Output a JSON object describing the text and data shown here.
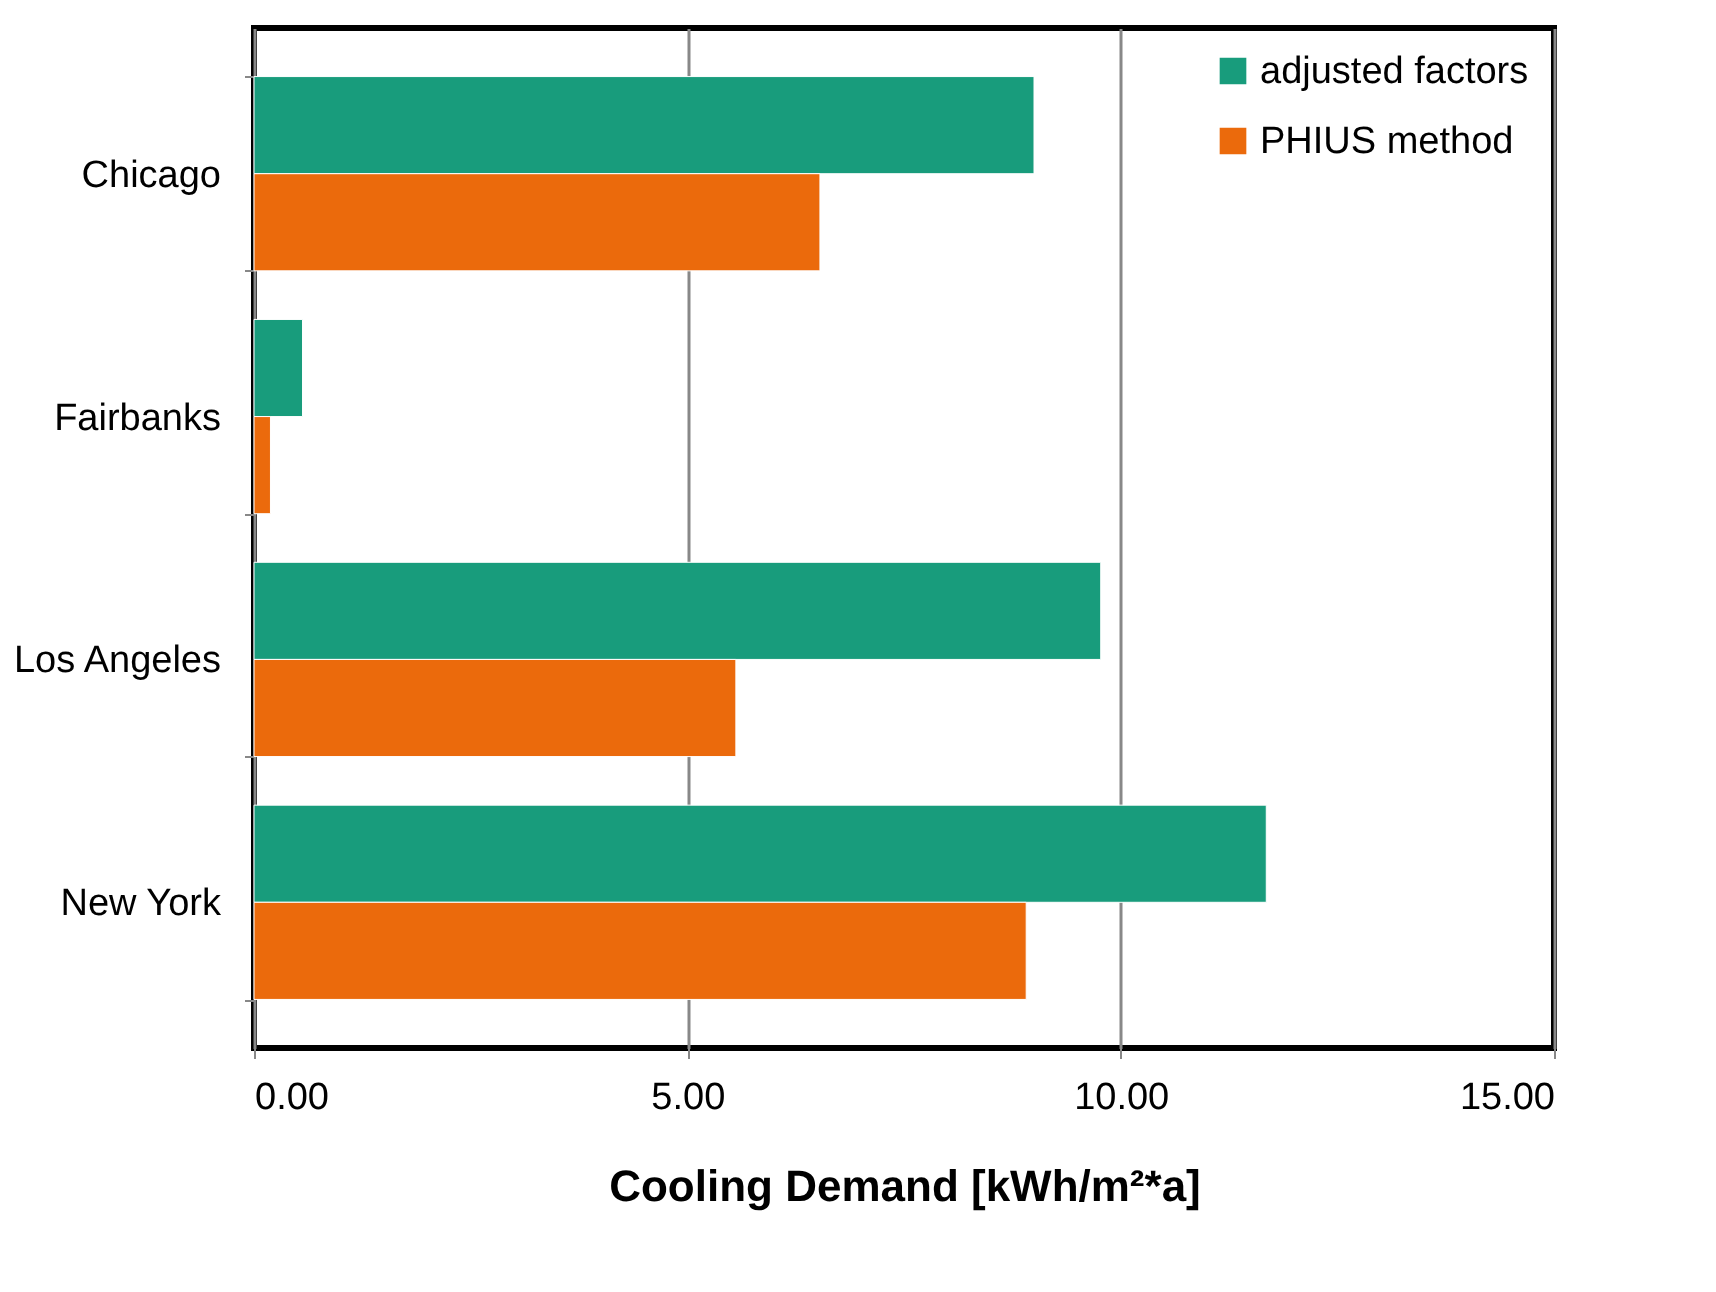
{
  "chart_data": {
    "type": "bar",
    "orientation": "horizontal",
    "xlabel": "Cooling Demand [kWh/m²*a]",
    "categories": [
      "Chicago",
      "Fairbanks",
      "Los Angeles",
      "New York"
    ],
    "series": [
      {
        "name": "adjusted factors",
        "color": "#189c7c",
        "values": [
          9.0,
          0.56,
          9.77,
          11.68
        ]
      },
      {
        "name": "PHIUS method",
        "color": "#eb6a0c",
        "values": [
          6.53,
          0.19,
          5.56,
          8.91
        ]
      }
    ],
    "xlim": [
      0,
      15
    ],
    "xticks": [
      {
        "value": 0,
        "label": "0.00"
      },
      {
        "value": 5,
        "label": "5.00"
      },
      {
        "value": 10,
        "label": "10.00"
      },
      {
        "value": 15,
        "label": "15.00"
      }
    ],
    "grid": "x",
    "legend": "top right"
  }
}
